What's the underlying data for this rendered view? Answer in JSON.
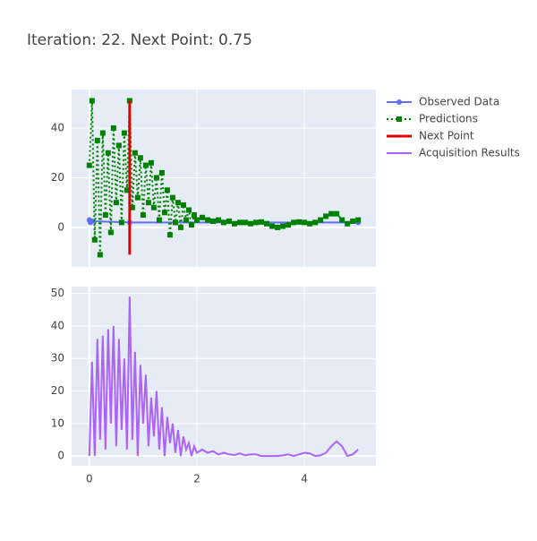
{
  "chart_data": [
    {
      "type": "line",
      "title": "Iteration: 22. Next Point: 0.75",
      "xlim": [
        -0.33,
        5.33
      ],
      "ylim": [
        -15.9,
        55.5
      ],
      "yticks": [
        0,
        20,
        40
      ],
      "grid": true,
      "legend": "right",
      "series": [
        {
          "name": "Observed Data",
          "color": "#636efa",
          "marker": "circle",
          "x": [
            0,
            0.02,
            0.05,
            0.75,
            5
          ],
          "values": [
            3,
            2,
            2.5,
            2,
            2
          ]
        },
        {
          "name": "Predictions",
          "color": "green",
          "marker": "square",
          "dash": "dot",
          "x": [
            0,
            0.05,
            0.1,
            0.15,
            0.2,
            0.25,
            0.3,
            0.35,
            0.4,
            0.45,
            0.5,
            0.55,
            0.6,
            0.65,
            0.7,
            0.75,
            0.8,
            0.85,
            0.9,
            0.95,
            1,
            1.05,
            1.1,
            1.15,
            1.2,
            1.25,
            1.3,
            1.35,
            1.4,
            1.45,
            1.5,
            1.55,
            1.6,
            1.65,
            1.7,
            1.75,
            1.8,
            1.85,
            1.9,
            1.95,
            2,
            2.1,
            2.2,
            2.3,
            2.4,
            2.5,
            2.6,
            2.7,
            2.8,
            2.9,
            3,
            3.1,
            3.2,
            3.3,
            3.4,
            3.5,
            3.6,
            3.7,
            3.8,
            3.9,
            4,
            4.1,
            4.2,
            4.3,
            4.4,
            4.5,
            4.6,
            4.7,
            4.8,
            4.9,
            5
          ],
          "values": [
            25,
            51,
            -5,
            35,
            -11,
            38,
            5,
            30,
            -2,
            40,
            10,
            33,
            2,
            38,
            15,
            51,
            8,
            30,
            12,
            28,
            5,
            25,
            10,
            26,
            8,
            20,
            3,
            22,
            6,
            15,
            -3,
            12,
            2,
            10,
            0,
            9,
            3,
            7,
            1,
            5,
            3,
            4,
            3,
            2.5,
            3,
            2,
            2.5,
            1.5,
            2,
            2,
            1.5,
            2,
            2.2,
            1.5,
            0.5,
            0,
            0.5,
            1,
            2,
            2.2,
            2,
            1.5,
            2,
            3,
            4.5,
            5.5,
            5.5,
            3,
            1.5,
            2.5,
            3
          ]
        },
        {
          "name": "Next Point",
          "color": "#e00000",
          "width": 3,
          "x": [
            0.75,
            0.75
          ],
          "values": [
            -11,
            51
          ]
        }
      ]
    },
    {
      "type": "line",
      "xlim": [
        -0.33,
        5.33
      ],
      "ylim": [
        -3,
        52.1
      ],
      "xticks": [
        0,
        2,
        4
      ],
      "yticks": [
        0,
        10,
        20,
        30,
        40,
        50
      ],
      "grid": true,
      "series": [
        {
          "name": "Acquisition Results",
          "color": "#ab63fa",
          "x": [
            0,
            0.05,
            0.1,
            0.15,
            0.2,
            0.25,
            0.3,
            0.35,
            0.4,
            0.45,
            0.5,
            0.55,
            0.6,
            0.65,
            0.7,
            0.75,
            0.8,
            0.85,
            0.9,
            0.95,
            1,
            1.05,
            1.1,
            1.15,
            1.2,
            1.25,
            1.3,
            1.35,
            1.4,
            1.45,
            1.5,
            1.55,
            1.6,
            1.65,
            1.7,
            1.75,
            1.8,
            1.85,
            1.9,
            1.95,
            2,
            2.1,
            2.2,
            2.3,
            2.4,
            2.5,
            2.6,
            2.7,
            2.8,
            2.9,
            3,
            3.1,
            3.2,
            3.3,
            3.4,
            3.5,
            3.6,
            3.7,
            3.8,
            3.9,
            4,
            4.1,
            4.2,
            4.3,
            4.4,
            4.5,
            4.6,
            4.7,
            4.8,
            4.9,
            5
          ],
          "values": [
            0,
            29,
            0,
            36,
            5,
            37,
            2,
            39,
            10,
            40,
            3,
            36,
            8,
            30,
            2,
            49,
            5,
            32,
            0,
            28,
            10,
            25,
            3,
            18,
            6,
            20,
            2,
            15,
            0,
            12,
            4,
            10,
            1,
            8,
            0,
            6,
            2,
            4,
            0,
            3,
            1,
            2,
            1,
            1.5,
            0.5,
            1,
            0.5,
            0.3,
            0.8,
            0.2,
            0.5,
            0.5,
            0,
            0,
            0,
            0,
            0.2,
            0.5,
            0,
            0.5,
            1,
            0.8,
            0,
            0.2,
            1,
            3,
            4.5,
            3,
            0,
            0.5,
            2
          ]
        }
      ]
    }
  ]
}
